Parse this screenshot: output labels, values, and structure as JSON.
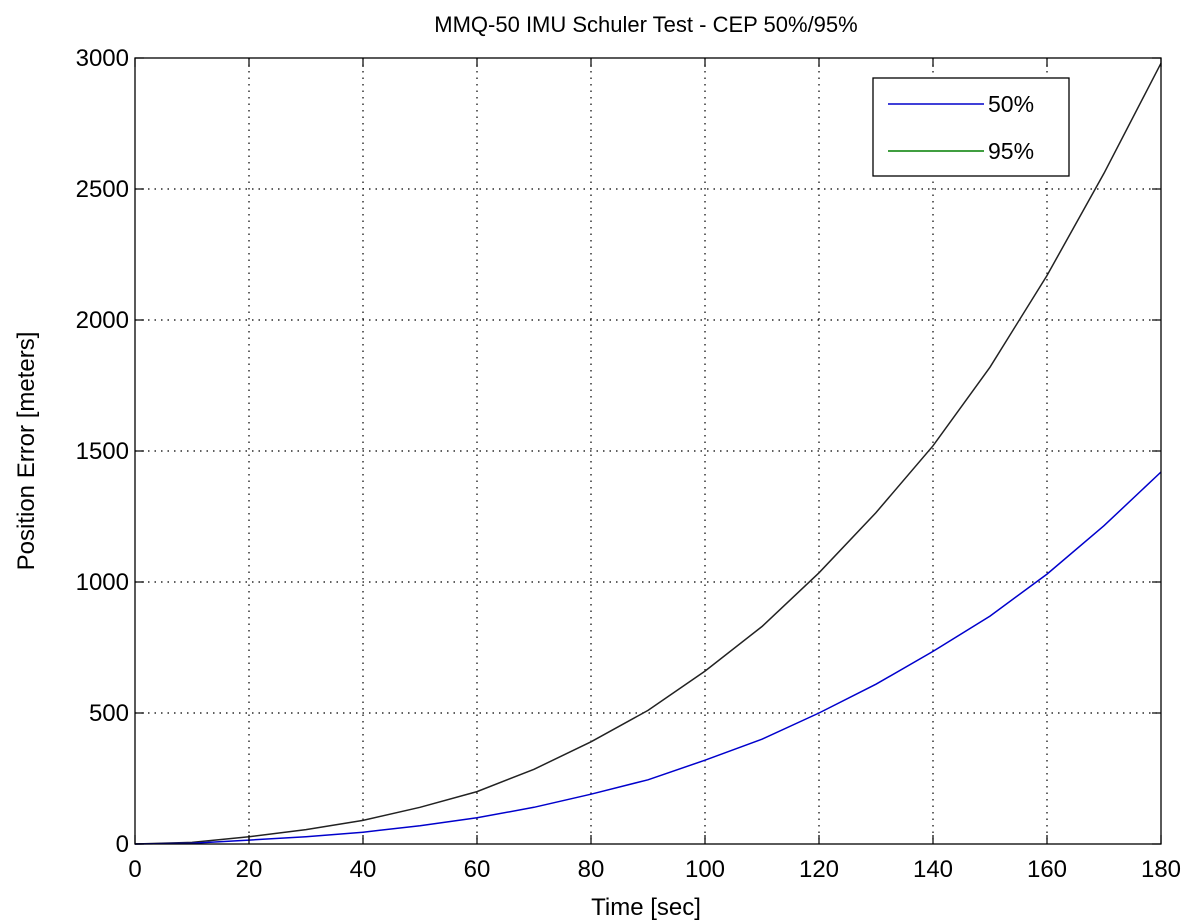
{
  "chart_data": {
    "type": "line",
    "title": "MMQ-50 IMU Schuler Test - CEP 50%/95%",
    "xlabel": "Time [sec]",
    "ylabel": "Position Error [meters]",
    "xlim": [
      0,
      180
    ],
    "ylim": [
      0,
      3000
    ],
    "x_ticks": [
      "0",
      "20",
      "40",
      "60",
      "80",
      "100",
      "120",
      "140",
      "160",
      "180"
    ],
    "y_ticks": [
      "0",
      "500",
      "1000",
      "1500",
      "2000",
      "2500",
      "3000"
    ],
    "grid": true,
    "legend_position": "top-right",
    "x": [
      0,
      10,
      20,
      30,
      40,
      50,
      60,
      70,
      80,
      90,
      100,
      110,
      120,
      130,
      140,
      150,
      160,
      170,
      180
    ],
    "series": [
      {
        "name": "50%",
        "color": "#0000cc",
        "values": [
          0,
          3,
          15,
          28,
          45,
          70,
          100,
          140,
          190,
          245,
          320,
          400,
          500,
          610,
          735,
          870,
          1030,
          1215,
          1420
        ]
      },
      {
        "name": "95%",
        "color": "#007f00",
        "values": [
          0,
          6,
          28,
          55,
          90,
          140,
          200,
          285,
          390,
          510,
          660,
          830,
          1035,
          1265,
          1520,
          1820,
          2170,
          2560,
          2980
        ]
      }
    ]
  }
}
